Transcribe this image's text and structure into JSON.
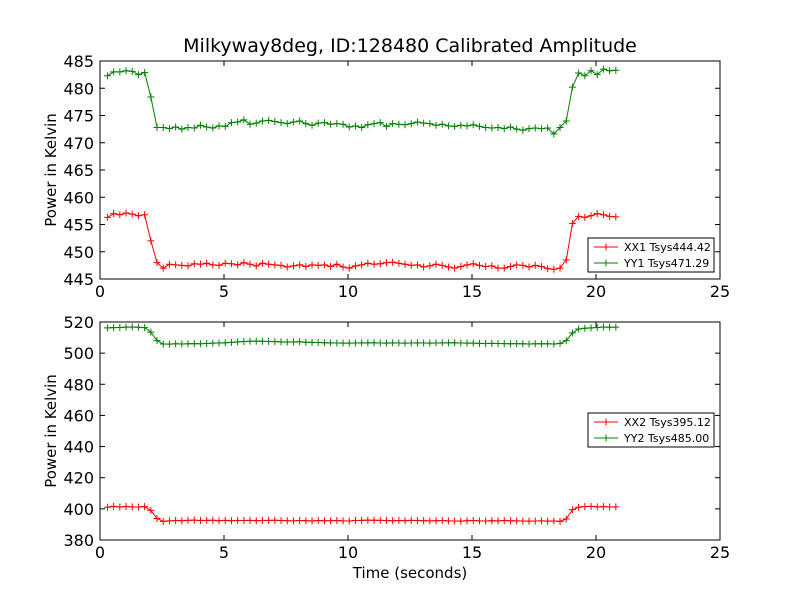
{
  "chart_data": [
    {
      "type": "line",
      "title": "Milkyway8deg, ID:128480 Calibrated Amplitude",
      "xlabel": "",
      "ylabel": "Power in Kelvin",
      "xlim": [
        0,
        25
      ],
      "ylim": [
        445,
        485
      ],
      "xticks": [
        "0",
        "5",
        "10",
        "15",
        "20",
        "25"
      ],
      "yticks": [
        "445",
        "450",
        "455",
        "460",
        "465",
        "470",
        "475",
        "480",
        "485"
      ],
      "legend_position": "lower-right",
      "x": [
        0.3,
        0.55,
        0.8,
        1.05,
        1.3,
        1.55,
        1.8,
        2.05,
        2.3,
        2.55,
        2.8,
        3.05,
        3.3,
        3.55,
        3.8,
        4.05,
        4.3,
        4.55,
        4.8,
        5.05,
        5.3,
        5.55,
        5.8,
        6.05,
        6.3,
        6.55,
        6.8,
        7.05,
        7.3,
        7.55,
        7.8,
        8.05,
        8.3,
        8.55,
        8.8,
        9.05,
        9.3,
        9.55,
        9.8,
        10.05,
        10.3,
        10.55,
        10.8,
        11.05,
        11.3,
        11.55,
        11.8,
        12.05,
        12.3,
        12.55,
        12.8,
        13.05,
        13.3,
        13.55,
        13.8,
        14.05,
        14.3,
        14.55,
        14.8,
        15.05,
        15.3,
        15.55,
        15.8,
        16.05,
        16.3,
        16.55,
        16.8,
        17.05,
        17.3,
        17.55,
        17.8,
        18.05,
        18.3,
        18.55,
        18.8,
        19.05,
        19.3,
        19.55,
        19.8,
        20.05,
        20.3,
        20.55,
        20.8
      ],
      "series": [
        {
          "name": "XX1 Tsys444.42",
          "color": "#ff0000",
          "values": [
            456.3,
            457.0,
            456.8,
            457.1,
            456.9,
            456.6,
            456.8,
            452.0,
            448.0,
            447.0,
            447.7,
            447.6,
            447.5,
            447.4,
            447.8,
            447.7,
            447.9,
            447.6,
            447.5,
            447.9,
            447.8,
            447.6,
            448.0,
            447.7,
            447.4,
            447.9,
            447.7,
            447.6,
            447.5,
            447.2,
            447.4,
            447.6,
            447.3,
            447.6,
            447.5,
            447.6,
            447.3,
            447.7,
            447.2,
            447.0,
            447.4,
            447.6,
            447.9,
            447.7,
            447.8,
            448.0,
            448.1,
            447.9,
            447.7,
            447.5,
            447.6,
            447.2,
            447.4,
            447.7,
            447.5,
            447.2,
            447.0,
            447.3,
            447.6,
            447.8,
            447.5,
            447.3,
            447.4,
            447.0,
            447.0,
            447.3,
            447.6,
            447.5,
            447.2,
            447.5,
            447.3,
            446.9,
            446.8,
            447.0,
            448.5,
            455.2,
            456.5,
            456.3,
            456.6,
            457.0,
            456.8,
            456.5,
            456.4
          ]
        },
        {
          "name": "YY1 Tsys471.29",
          "color": "#008000",
          "values": [
            482.3,
            483.0,
            483.0,
            483.2,
            483.1,
            482.5,
            482.9,
            478.4,
            472.8,
            472.8,
            472.6,
            472.9,
            472.5,
            472.8,
            472.7,
            473.2,
            472.9,
            472.7,
            473.1,
            473.0,
            473.7,
            473.8,
            474.2,
            473.4,
            473.6,
            474.0,
            474.1,
            473.9,
            473.7,
            473.5,
            473.8,
            474.0,
            473.5,
            473.2,
            473.6,
            473.7,
            473.4,
            473.5,
            473.4,
            472.9,
            473.1,
            472.8,
            473.3,
            473.5,
            473.7,
            473.0,
            473.5,
            473.4,
            473.3,
            473.5,
            473.8,
            473.6,
            473.5,
            473.2,
            473.4,
            473.1,
            473.0,
            473.2,
            473.1,
            473.3,
            473.0,
            472.8,
            472.7,
            472.8,
            472.6,
            472.9,
            472.5,
            472.3,
            472.6,
            472.7,
            472.6,
            472.7,
            471.6,
            472.8,
            474.0,
            480.2,
            482.8,
            482.3,
            483.2,
            482.5,
            483.5,
            483.2,
            483.3
          ]
        }
      ]
    },
    {
      "type": "line",
      "title": "",
      "xlabel": "Time (seconds)",
      "ylabel": "Power in Kelvin",
      "xlim": [
        0,
        25
      ],
      "ylim": [
        380,
        520
      ],
      "xticks": [
        "0",
        "5",
        "10",
        "15",
        "20",
        "25"
      ],
      "yticks": [
        "380",
        "400",
        "420",
        "440",
        "460",
        "480",
        "500",
        "520"
      ],
      "legend_position": "center-right",
      "x": [
        0.3,
        0.55,
        0.8,
        1.05,
        1.3,
        1.55,
        1.8,
        2.05,
        2.3,
        2.55,
        2.8,
        3.05,
        3.3,
        3.55,
        3.8,
        4.05,
        4.3,
        4.55,
        4.8,
        5.05,
        5.3,
        5.55,
        5.8,
        6.05,
        6.3,
        6.55,
        6.8,
        7.05,
        7.3,
        7.55,
        7.8,
        8.05,
        8.3,
        8.55,
        8.8,
        9.05,
        9.3,
        9.55,
        9.8,
        10.05,
        10.3,
        10.55,
        10.8,
        11.05,
        11.3,
        11.55,
        11.8,
        12.05,
        12.3,
        12.55,
        12.8,
        13.05,
        13.3,
        13.55,
        13.8,
        14.05,
        14.3,
        14.55,
        14.8,
        15.05,
        15.3,
        15.55,
        15.8,
        16.05,
        16.3,
        16.55,
        16.8,
        17.05,
        17.3,
        17.55,
        17.8,
        18.05,
        18.3,
        18.55,
        18.8,
        19.05,
        19.3,
        19.55,
        19.8,
        20.05,
        20.3,
        20.55,
        20.8
      ],
      "series": [
        {
          "name": "XX2 Tsys395.12",
          "color": "#ff0000",
          "values": [
            401.0,
            401.6,
            401.2,
            401.5,
            401.3,
            401.2,
            401.4,
            399.0,
            393.8,
            392.0,
            392.3,
            392.5,
            392.4,
            392.6,
            392.8,
            392.5,
            392.6,
            392.7,
            392.4,
            392.6,
            392.4,
            392.5,
            392.5,
            392.6,
            392.4,
            392.5,
            392.6,
            392.7,
            392.5,
            392.4,
            392.3,
            392.5,
            392.4,
            392.3,
            392.5,
            392.4,
            392.4,
            392.5,
            392.3,
            392.2,
            392.5,
            392.6,
            392.8,
            392.7,
            392.6,
            392.5,
            392.4,
            392.5,
            392.4,
            392.6,
            392.5,
            392.4,
            392.3,
            392.4,
            392.5,
            392.3,
            392.2,
            392.1,
            392.4,
            392.5,
            392.3,
            392.2,
            392.4,
            392.3,
            392.5,
            392.4,
            392.3,
            392.2,
            392.1,
            392.2,
            392.3,
            392.1,
            392.2,
            392.0,
            393.5,
            399.5,
            401.0,
            401.5,
            401.6,
            401.3,
            401.4,
            401.2,
            401.3
          ]
        },
        {
          "name": "YY2 Tsys485.00",
          "color": "#008000",
          "values": [
            516.2,
            516.4,
            516.5,
            516.7,
            516.8,
            516.6,
            516.4,
            513.5,
            508.0,
            505.9,
            505.8,
            506.0,
            505.9,
            506.0,
            506.1,
            506.0,
            506.2,
            506.4,
            506.5,
            506.7,
            506.9,
            507.2,
            507.5,
            507.6,
            507.7,
            507.6,
            507.5,
            507.4,
            507.2,
            507.1,
            507.2,
            507.3,
            507.0,
            506.9,
            506.8,
            506.7,
            506.6,
            506.5,
            506.4,
            506.4,
            506.5,
            506.6,
            506.6,
            506.7,
            506.5,
            506.4,
            506.6,
            506.5,
            506.4,
            506.5,
            506.6,
            506.5,
            506.4,
            506.5,
            506.6,
            506.6,
            506.7,
            506.5,
            506.4,
            506.4,
            506.3,
            506.2,
            506.3,
            506.2,
            506.1,
            506.0,
            506.1,
            506.0,
            505.9,
            506.0,
            506.0,
            506.0,
            505.9,
            506.3,
            508.0,
            513.0,
            515.5,
            516.0,
            516.2,
            516.5,
            516.8,
            516.6,
            516.7
          ]
        }
      ]
    }
  ]
}
